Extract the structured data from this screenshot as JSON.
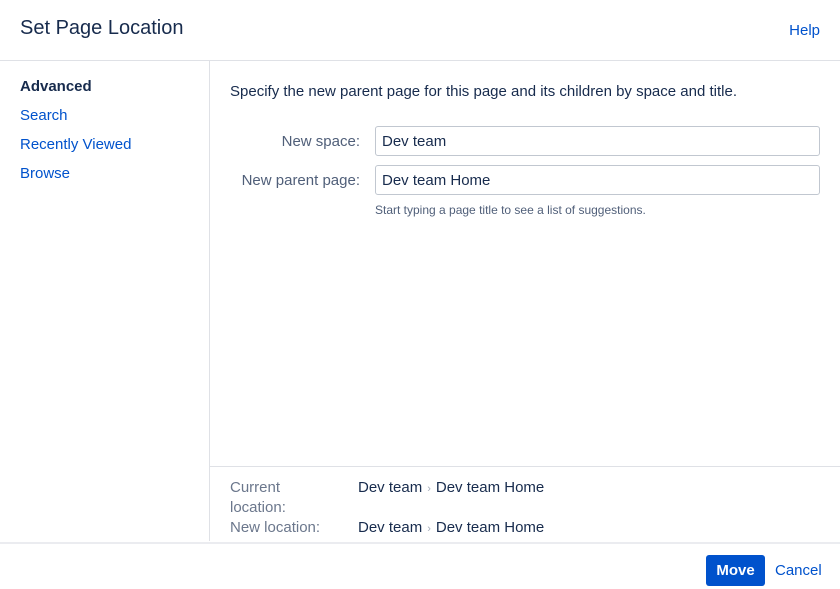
{
  "header": {
    "title": "Set Page Location",
    "help": "Help"
  },
  "sidebar": {
    "items": [
      {
        "label": "Advanced"
      },
      {
        "label": "Search"
      },
      {
        "label": "Recently Viewed"
      },
      {
        "label": "Browse"
      }
    ]
  },
  "main": {
    "description": "Specify the new parent page for this page and its children by space and title.",
    "space_label": "New space:",
    "space_value": "Dev team",
    "parent_label": "New parent page:",
    "parent_value": "Dev team Home",
    "hint": "Start typing a page title to see a list of suggestions."
  },
  "location": {
    "current_label": "Current location:",
    "current": [
      "Dev team",
      "Dev team Home"
    ],
    "new_label": "New location:",
    "new": [
      "Dev team",
      "Dev team Home"
    ],
    "separator": "›"
  },
  "footer": {
    "move": "Move",
    "cancel": "Cancel"
  }
}
